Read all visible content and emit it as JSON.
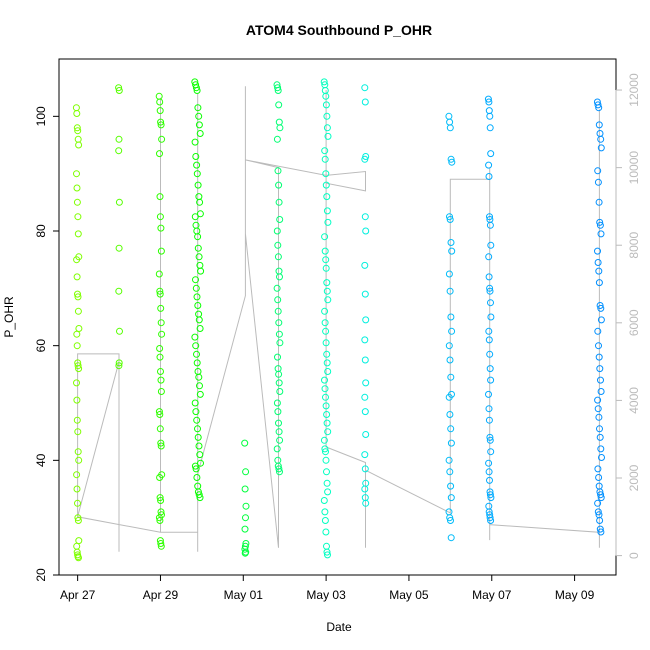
{
  "chart_data": {
    "type": "scatter",
    "title": "ATOM4 Southbound P_OHR",
    "xlabel": "Date",
    "ylabel": "P_OHR",
    "x_ticks": [
      "Apr 27",
      "Apr 29",
      "May 01",
      "May 03",
      "May 05",
      "May 07",
      "May 09"
    ],
    "x_tick_values": [
      0,
      2,
      4,
      6,
      8,
      10,
      12
    ],
    "xlim": [
      -0.45,
      13.0
    ],
    "ylim": [
      20,
      110
    ],
    "y_ticks": [
      20,
      40,
      60,
      80,
      100
    ],
    "y2lim": [
      -500,
      12800
    ],
    "y2_ticks": [
      0,
      2000,
      4000,
      6000,
      8000,
      10000,
      12000
    ],
    "grid": false,
    "legend": "none",
    "point_style": "open-circle",
    "point_color_gradient": [
      "#7fff00",
      "#00ff00",
      "#00ffd5",
      "#00b0ff",
      "#0090ff"
    ],
    "secondary_line_color": "#bbbbbb",
    "series": [
      {
        "day": 0.0,
        "x_spread": 0.06,
        "y": [
          101.5,
          100.5,
          98.0,
          97.5,
          96.0,
          95.0,
          90.0,
          87.5,
          85.0,
          82.5,
          79.5,
          75.5,
          75.0,
          72.0,
          69.0,
          68.5,
          66.0,
          63.0,
          62.0,
          60.0,
          57.0,
          56.5,
          56.0,
          53.5,
          50.5,
          47.0,
          45.0,
          41.5,
          40.0,
          37.5,
          35.0,
          32.5,
          30.0,
          29.5,
          26.0,
          25.0,
          24.0,
          23.5,
          23.2,
          23.0
        ]
      },
      {
        "day": 1.0,
        "x_spread": 0.02,
        "y": [
          105.0,
          104.5,
          96.0,
          94.0,
          85.0,
          77.0,
          69.5,
          62.5,
          57.0,
          56.5
        ]
      },
      {
        "day": 2.0,
        "x_spread": 0.06,
        "y": [
          103.5,
          102.5,
          101.0,
          99.0,
          98.5,
          96.0,
          93.5,
          86.0,
          82.5,
          80.5,
          76.5,
          72.5,
          69.5,
          69.0,
          66.5,
          64.0,
          62.0,
          59.5,
          58.0,
          55.5,
          54.0,
          52.0,
          48.5,
          48.0,
          45.5,
          43.0,
          42.5,
          37.5,
          37.0,
          33.5,
          33.0,
          31.0,
          30.5,
          30.0,
          29.5,
          26.0,
          25.5,
          25.0
        ]
      },
      {
        "day": 2.9,
        "x_spread": 0.14,
        "y": [
          106.0,
          105.5,
          105.0,
          104.5,
          101.5,
          100.0,
          98.5,
          97.0,
          95.5,
          93.0,
          91.5,
          90.0,
          88.0,
          86.0,
          85.0,
          83.0,
          82.5,
          81.0,
          80.0,
          79.0,
          77.0,
          75.5,
          74.0,
          73.0,
          71.5,
          70.0,
          68.5,
          67.0,
          65.5,
          64.5,
          63.0,
          61.5,
          60.0,
          58.5,
          57.0,
          55.5,
          54.5,
          53.0,
          51.5,
          50.0,
          48.5,
          47.0,
          45.5,
          44.0,
          42.5,
          41.0,
          39.5,
          39.0,
          38.5,
          37.0,
          35.5,
          34.5,
          34.0,
          33.5
        ]
      },
      {
        "day": 4.05,
        "x_spread": 0.03,
        "y": [
          43.0,
          38.0,
          35.0,
          32.0,
          30.0,
          28.0,
          25.5,
          25.0,
          24.5,
          24.0,
          23.8
        ]
      },
      {
        "day": 4.85,
        "x_spread": 0.07,
        "y": [
          105.5,
          105.0,
          104.5,
          102.0,
          99.0,
          98.0,
          96.0,
          90.5,
          88.0,
          85.0,
          82.0,
          80.0,
          77.5,
          75.5,
          73.0,
          72.0,
          70.0,
          68.0,
          66.0,
          64.0,
          62.0,
          60.5,
          58.0,
          56.0,
          55.0,
          53.5,
          52.0,
          50.0,
          48.5,
          46.5,
          45.0,
          43.5,
          42.0,
          40.0,
          39.0,
          38.5,
          38.0
        ]
      },
      {
        "day": 6.0,
        "x_spread": 0.09,
        "y": [
          106.0,
          105.5,
          104.5,
          103.5,
          102.0,
          100.0,
          98.0,
          96.5,
          94.0,
          92.5,
          90.0,
          88.0,
          86.0,
          83.5,
          81.5,
          79.0,
          76.5,
          75.0,
          73.5,
          71.0,
          69.5,
          68.0,
          66.0,
          64.0,
          62.5,
          60.5,
          58.5,
          57.0,
          55.5,
          54.0,
          52.5,
          51.0,
          49.5,
          48.0,
          46.5,
          45.0,
          43.5,
          42.0,
          41.5,
          40.0,
          38.0,
          36.0,
          34.5,
          33.0,
          31.0,
          29.5,
          27.5,
          25.0,
          24.0,
          23.5
        ]
      },
      {
        "day": 6.95,
        "x_spread": 0.03,
        "y": [
          105.0,
          102.5,
          93.0,
          92.5,
          82.5,
          80.0,
          74.0,
          69.0,
          64.5,
          61.0,
          57.5,
          53.5,
          51.0,
          48.5,
          44.5,
          41.0,
          38.5,
          36.0,
          35.0,
          33.5,
          32.5
        ]
      },
      {
        "day": 9.0,
        "x_spread": 0.07,
        "y": [
          100.0,
          99.0,
          98.0,
          92.5,
          92.0,
          82.5,
          82.0,
          78.0,
          76.5,
          72.5,
          69.5,
          65.0,
          62.5,
          60.0,
          57.5,
          54.5,
          51.5,
          51.0,
          48.0,
          45.5,
          43.0,
          40.0,
          38.0,
          35.5,
          33.5,
          31.0,
          30.0,
          29.5,
          26.5
        ]
      },
      {
        "day": 9.95,
        "x_spread": 0.06,
        "y": [
          103.0,
          102.5,
          101.0,
          100.0,
          98.0,
          93.5,
          91.5,
          89.5,
          82.5,
          82.0,
          81.0,
          77.5,
          75.5,
          72.0,
          70.0,
          69.5,
          67.5,
          65.0,
          62.5,
          61.0,
          58.5,
          56.0,
          54.0,
          51.5,
          49.0,
          47.0,
          44.0,
          43.5,
          41.5,
          39.5,
          38.0,
          36.5,
          34.5,
          34.0,
          33.5,
          32.0,
          31.0,
          30.5,
          30.0,
          29.5
        ]
      },
      {
        "day": 12.6,
        "x_spread": 0.1,
        "y": [
          102.5,
          102.0,
          101.5,
          98.5,
          97.0,
          96.0,
          94.5,
          90.5,
          88.5,
          85.0,
          81.5,
          81.0,
          79.5,
          76.5,
          74.5,
          73.0,
          71.0,
          67.0,
          66.5,
          64.5,
          62.5,
          60.0,
          58.0,
          56.0,
          54.0,
          52.0,
          50.5,
          49.0,
          47.5,
          45.5,
          44.0,
          42.0,
          40.5,
          38.5,
          37.0,
          35.5,
          34.5,
          34.0,
          33.5,
          32.5,
          31.0,
          30.5,
          29.5,
          28.0,
          27.5
        ]
      }
    ],
    "secondary_path": [
      [
        0.0,
        1000
      ],
      [
        0.0,
        5200
      ],
      [
        1.0,
        5200
      ],
      [
        1.0,
        100
      ],
      [
        1.0,
        5000
      ],
      [
        0.0,
        1000
      ],
      [
        2.0,
        600
      ],
      [
        2.0,
        11800
      ],
      [
        2.0,
        600
      ],
      [
        2.9,
        600
      ],
      [
        2.9,
        11900
      ],
      [
        2.9,
        100
      ],
      [
        2.9,
        2100
      ],
      [
        4.05,
        6700
      ],
      [
        4.05,
        12100
      ],
      [
        4.05,
        8300
      ],
      [
        4.85,
        200
      ],
      [
        4.85,
        9800
      ],
      [
        4.85,
        200
      ],
      [
        4.85,
        5000
      ],
      [
        4.85,
        10000
      ],
      [
        4.05,
        10200
      ],
      [
        6.0,
        9800
      ],
      [
        6.95,
        9900
      ],
      [
        6.95,
        9400
      ],
      [
        6.0,
        9600
      ],
      [
        6.0,
        12000
      ],
      [
        6.0,
        2800
      ],
      [
        6.95,
        2400
      ],
      [
        6.95,
        200
      ],
      [
        6.95,
        2200
      ],
      [
        9.0,
        1100
      ],
      [
        9.0,
        9700
      ],
      [
        9.95,
        9700
      ],
      [
        9.95,
        400
      ],
      [
        9.95,
        10000
      ],
      [
        9.95,
        800
      ],
      [
        12.6,
        600
      ],
      [
        12.6,
        11500
      ],
      [
        12.6,
        200
      ],
      [
        12.6,
        9000
      ]
    ]
  }
}
